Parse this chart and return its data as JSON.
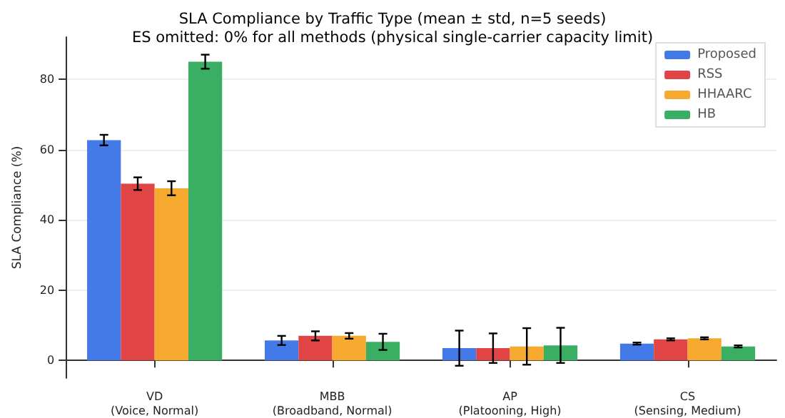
{
  "chart_data": {
    "type": "bar",
    "title": "SLA Compliance by Traffic Type (mean ± std, n=5 seeds)",
    "subtitle": "ES omitted: 0% for all methods (physical single-carrier capacity limit)",
    "ylabel": "SLA Compliance (%)",
    "categories": [
      "VD\n(Voice, Normal)",
      "MBB\n(Broadband, Normal)",
      "AP\n(Platooning, High)",
      "CS\n(Sensing, Medium)"
    ],
    "series": [
      {
        "name": "Proposed",
        "color": "#4479e8",
        "values": [
          62.7,
          5.7,
          3.5,
          4.8
        ],
        "errors": [
          1.5,
          1.3,
          5,
          0.3
        ]
      },
      {
        "name": "RSS",
        "color": "#e04444",
        "values": [
          50.3,
          7,
          3.5,
          6
        ],
        "errors": [
          1.8,
          1.3,
          4.2,
          0.3
        ]
      },
      {
        "name": "HHAARC",
        "color": "#f6a92f",
        "values": [
          49,
          7,
          4,
          6.3
        ],
        "errors": [
          2,
          0.8,
          5.2,
          0.3
        ]
      },
      {
        "name": "HB",
        "color": "#3aae62",
        "values": [
          85,
          5.3,
          4.3,
          4
        ],
        "errors": [
          2,
          2.3,
          5,
          0.3
        ]
      }
    ],
    "ylim": [
      -5,
      92
    ],
    "yticks": [
      0,
      20,
      40,
      60,
      80
    ],
    "grid": "y",
    "legend": "top right"
  }
}
